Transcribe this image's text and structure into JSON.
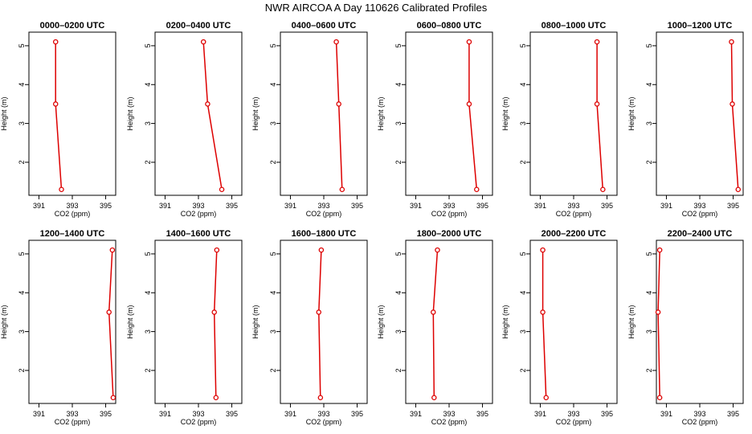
{
  "title": "NWR AIRCOA A  Day 110626  Calibrated Profiles",
  "chart_data": {
    "type": "line",
    "xlabel": "CO2 (ppm)",
    "ylabel": "Height (m)",
    "xlim": [
      390.4,
      395.6
    ],
    "ylim": [
      1.15,
      5.35
    ],
    "xticks": [
      391,
      393,
      395
    ],
    "yticks": [
      2,
      3,
      4,
      5
    ],
    "grid": false,
    "series_color": "#dd0000",
    "panels": [
      {
        "title": "0000–0200 UTC",
        "points": [
          {
            "x": 392.0,
            "y": 5.1
          },
          {
            "x": 392.0,
            "y": 3.5
          },
          {
            "x": 392.35,
            "y": 1.3
          }
        ]
      },
      {
        "title": "0200–0400 UTC",
        "points": [
          {
            "x": 393.3,
            "y": 5.1
          },
          {
            "x": 393.55,
            "y": 3.5
          },
          {
            "x": 394.4,
            "y": 1.3
          }
        ]
      },
      {
        "title": "0400–0600 UTC",
        "points": [
          {
            "x": 393.75,
            "y": 5.1
          },
          {
            "x": 393.9,
            "y": 3.5
          },
          {
            "x": 394.1,
            "y": 1.3
          }
        ]
      },
      {
        "title": "0600–0800 UTC",
        "points": [
          {
            "x": 394.2,
            "y": 5.1
          },
          {
            "x": 394.2,
            "y": 3.5
          },
          {
            "x": 394.65,
            "y": 1.3
          }
        ]
      },
      {
        "title": "0800–1000 UTC",
        "points": [
          {
            "x": 394.4,
            "y": 5.1
          },
          {
            "x": 394.4,
            "y": 3.5
          },
          {
            "x": 394.75,
            "y": 1.3
          }
        ]
      },
      {
        "title": "1000–1200 UTC",
        "points": [
          {
            "x": 394.9,
            "y": 5.1
          },
          {
            "x": 394.95,
            "y": 3.5
          },
          {
            "x": 395.3,
            "y": 1.3
          }
        ]
      },
      {
        "title": "1200–1400 UTC",
        "points": [
          {
            "x": 395.4,
            "y": 5.1
          },
          {
            "x": 395.2,
            "y": 3.5
          },
          {
            "x": 395.45,
            "y": 1.3
          }
        ]
      },
      {
        "title": "1400–1600 UTC",
        "points": [
          {
            "x": 394.1,
            "y": 5.1
          },
          {
            "x": 393.95,
            "y": 3.5
          },
          {
            "x": 394.05,
            "y": 1.3
          }
        ]
      },
      {
        "title": "1600–1800 UTC",
        "points": [
          {
            "x": 392.85,
            "y": 5.1
          },
          {
            "x": 392.7,
            "y": 3.5
          },
          {
            "x": 392.8,
            "y": 1.3
          }
        ]
      },
      {
        "title": "1800–2000 UTC",
        "points": [
          {
            "x": 392.3,
            "y": 5.1
          },
          {
            "x": 392.05,
            "y": 3.5
          },
          {
            "x": 392.1,
            "y": 1.3
          }
        ]
      },
      {
        "title": "2000–2200 UTC",
        "points": [
          {
            "x": 391.15,
            "y": 5.1
          },
          {
            "x": 391.15,
            "y": 3.5
          },
          {
            "x": 391.35,
            "y": 1.3
          }
        ]
      },
      {
        "title": "2200–2400 UTC",
        "points": [
          {
            "x": 390.6,
            "y": 5.1
          },
          {
            "x": 390.5,
            "y": 3.5
          },
          {
            "x": 390.6,
            "y": 1.3
          }
        ]
      }
    ]
  }
}
